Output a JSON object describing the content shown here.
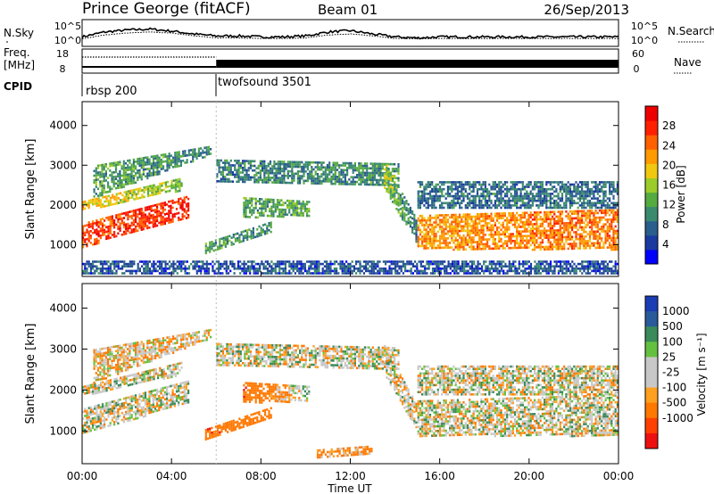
{
  "header": {
    "station": "Prince George (fitACF)",
    "beam": "Beam 01",
    "date": "26/Sep/2013"
  },
  "labels": {
    "nsky": "N.Sky",
    "freq": "Freq.",
    "freq_unit": "[MHz]",
    "cpid": "CPID",
    "nsearch": "N.Search",
    "nave": "Nave"
  },
  "noise_axis": {
    "left_ticks": [
      "10^5",
      "10^0"
    ],
    "right_ticks": [
      "10^5",
      "10^0"
    ]
  },
  "freq_axis": {
    "left_ticks": [
      "18",
      "8"
    ],
    "right_ticks": [
      "60",
      "0"
    ]
  },
  "cpid_segments": [
    {
      "label": "rbsp 200",
      "start_hour": 0
    },
    {
      "label": "twofsound 3501",
      "start_hour": 6
    }
  ],
  "colors": {
    "power": [
      "#0000ff",
      "#1a3aa0",
      "#2a5e8c",
      "#3a8a6e",
      "#55aa40",
      "#9ccc2a",
      "#f0c810",
      "#ff9a00",
      "#ff6000",
      "#ff2000",
      "#ee0000"
    ],
    "velocity": [
      "#1c3cb4",
      "#2a5a9a",
      "#3a8a5a",
      "#66c040",
      "#c8c8c8",
      "#c8c8c8",
      "#ffa020",
      "#ff7800",
      "#ff4000",
      "#ee1010"
    ],
    "velocity_gray": "#c8c8c8"
  },
  "chart_data": [
    {
      "type": "line",
      "panel": "noise",
      "x": [
        0,
        1,
        2,
        3,
        4,
        5,
        6,
        7,
        8,
        9,
        10,
        11,
        12,
        13,
        14,
        15,
        16,
        17,
        18,
        19,
        20,
        21,
        22,
        23,
        24
      ],
      "series": [
        {
          "name": "N.Sky",
          "values": [
            0.3,
            0.55,
            0.65,
            0.7,
            0.6,
            0.45,
            0.35,
            0.35,
            0.3,
            0.3,
            0.35,
            0.55,
            0.62,
            0.45,
            0.3,
            0.25,
            0.3,
            0.3,
            0.3,
            0.3,
            0.3,
            0.3,
            0.3,
            0.3,
            0.3
          ]
        },
        {
          "name": "N.Search",
          "values": [
            0.2,
            0.4,
            0.5,
            0.55,
            0.5,
            0.35,
            0.25,
            0.25,
            0.22,
            0.22,
            0.25,
            0.4,
            0.45,
            0.35,
            0.22,
            0.2,
            0.22,
            0.22,
            0.22,
            0.22,
            0.22,
            0.22,
            0.22,
            0.22,
            0.22
          ]
        }
      ],
      "xlim": [
        0,
        24
      ]
    },
    {
      "type": "line",
      "panel": "frequency",
      "series": [
        {
          "name": "Freq",
          "segments": [
            {
              "x": [
                0,
                6
              ],
              "value": 10.3
            },
            {
              "x": [
                6,
                24
              ],
              "value": 8.7
            }
          ]
        },
        {
          "name": "Nave",
          "segments": [
            {
              "x": [
                0,
                6
              ],
              "value": 35
            }
          ]
        }
      ],
      "ylim": [
        8,
        18
      ],
      "xlim": [
        0,
        24
      ]
    },
    {
      "type": "heatmap",
      "panel": "power",
      "ylabel": "Slant Range [km]",
      "ylim": [
        200,
        4600
      ],
      "yticks": [
        1000,
        2000,
        3000,
        4000
      ],
      "xlim": [
        0,
        24
      ],
      "colorbar": {
        "label": "Power [dB]",
        "range": [
          0,
          32
        ],
        "ticks": [
          4,
          8,
          12,
          16,
          20,
          24,
          28
        ]
      },
      "echo_regions": [
        {
          "x": [
            0.0,
            4.8
          ],
          "r_start": [
            960,
            1700
          ],
          "r_end": [
            1550,
            2250
          ],
          "power": [
            26,
            28
          ]
        },
        {
          "x": [
            0.0,
            4.5
          ],
          "r_start": [
            1880,
            2400
          ],
          "r_end": [
            2100,
            2700
          ],
          "power": [
            20,
            14
          ]
        },
        {
          "x": [
            0.5,
            5.8
          ],
          "r_start": [
            2200,
            3300
          ],
          "r_end": [
            3000,
            3500
          ],
          "power": [
            12,
            10
          ]
        },
        {
          "x": [
            6.0,
            14.2
          ],
          "r_start": [
            2600,
            2500
          ],
          "r_end": [
            3150,
            3050
          ],
          "power": [
            9,
            11
          ]
        },
        {
          "x": [
            13.5,
            15.0
          ],
          "r_start": [
            2400,
            1000
          ],
          "r_end": [
            3100,
            1600
          ],
          "power": [
            16,
            8
          ]
        },
        {
          "x": [
            7.2,
            10.2
          ],
          "r_start": [
            1700,
            1750
          ],
          "r_end": [
            2200,
            2100
          ],
          "power": [
            12,
            12
          ]
        },
        {
          "x": [
            5.5,
            8.5
          ],
          "r_start": [
            780,
            1350
          ],
          "r_end": [
            1050,
            1600
          ],
          "power": [
            12,
            10
          ]
        },
        {
          "x": [
            15.0,
            24.0
          ],
          "r_start": [
            900,
            900
          ],
          "r_end": [
            1750,
            1900
          ],
          "power": [
            22,
            24
          ]
        },
        {
          "x": [
            15.0,
            24.0
          ],
          "r_start": [
            1900,
            1900
          ],
          "r_end": [
            2600,
            2600
          ],
          "power": [
            8,
            8
          ]
        },
        {
          "x": [
            0.0,
            24.0
          ],
          "r_start": [
            250,
            250
          ],
          "r_end": [
            600,
            600
          ],
          "power": [
            6,
            6
          ]
        }
      ]
    },
    {
      "type": "heatmap",
      "panel": "velocity",
      "ylabel": "Slant Range [km]",
      "xlabel": "Time UT",
      "ylim": [
        200,
        4600
      ],
      "yticks": [
        1000,
        2000,
        3000,
        4000
      ],
      "xlim": [
        0,
        24
      ],
      "xticks": [
        "00:00",
        "04:00",
        "08:00",
        "12:00",
        "16:00",
        "20:00",
        "00:00"
      ],
      "colorbar": {
        "label": "Velocity [m s⁻¹]",
        "range": [
          -1250,
          1250
        ],
        "ticks": [
          "1000",
          "500",
          "100",
          "25",
          "-25",
          "-100",
          "-500",
          "-1000"
        ]
      },
      "echo_regions": [
        {
          "x": [
            0.0,
            4.8
          ],
          "r_start": [
            960,
            1700
          ],
          "r_end": [
            1550,
            2250
          ],
          "velocity": [
            0,
            0
          ]
        },
        {
          "x": [
            0.0,
            4.5
          ],
          "r_start": [
            1880,
            2400
          ],
          "r_end": [
            2100,
            2700
          ],
          "velocity": [
            0,
            0
          ]
        },
        {
          "x": [
            0.5,
            5.8
          ],
          "r_start": [
            2200,
            3300
          ],
          "r_end": [
            3000,
            3500
          ],
          "velocity": [
            -50,
            -50
          ]
        },
        {
          "x": [
            6.0,
            14.2
          ],
          "r_start": [
            2600,
            2500
          ],
          "r_end": [
            3150,
            3050
          ],
          "velocity": [
            0,
            0
          ]
        },
        {
          "x": [
            13.5,
            15.0
          ],
          "r_start": [
            2400,
            1000
          ],
          "r_end": [
            3100,
            1600
          ],
          "velocity": [
            0,
            0
          ]
        },
        {
          "x": [
            7.2,
            10.2
          ],
          "r_start": [
            1700,
            1750
          ],
          "r_end": [
            2200,
            2100
          ],
          "velocity": [
            -400,
            100
          ]
        },
        {
          "x": [
            5.5,
            8.5
          ],
          "r_start": [
            780,
            1350
          ],
          "r_end": [
            1050,
            1600
          ],
          "velocity": [
            -400,
            -300
          ]
        },
        {
          "x": [
            15.0,
            24.0
          ],
          "r_start": [
            900,
            900
          ],
          "r_end": [
            1750,
            1900
          ],
          "velocity": [
            0,
            0
          ]
        },
        {
          "x": [
            15.0,
            24.0
          ],
          "r_start": [
            1900,
            1900
          ],
          "r_end": [
            2600,
            2600
          ],
          "velocity": [
            0,
            0
          ]
        },
        {
          "x": [
            10.5,
            13.0
          ],
          "r_start": [
            350,
            450
          ],
          "r_end": [
            550,
            650
          ],
          "velocity": [
            -150,
            -150
          ]
        }
      ]
    }
  ]
}
